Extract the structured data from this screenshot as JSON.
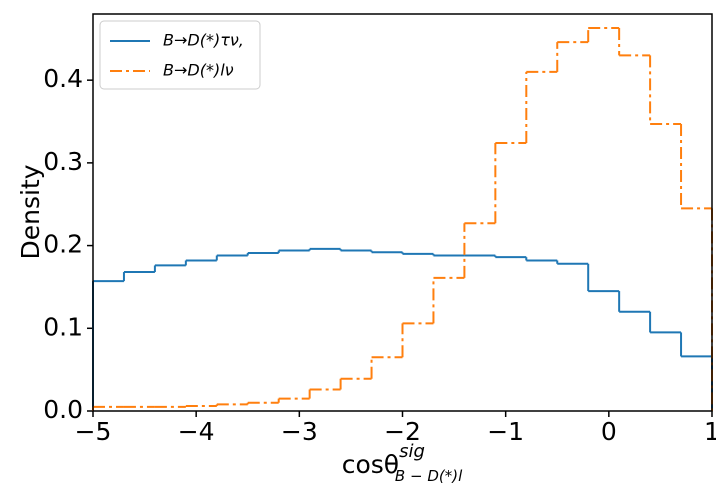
{
  "chart_data": {
    "type": "histogram",
    "xlabel": "cosθ",
    "xlabel_sup": "sig",
    "xlabel_sub": "B − D(*)l",
    "ylabel": "Density",
    "bins": [
      -5,
      -4.7,
      -4.4,
      -4.1,
      -3.8,
      -3.5,
      -3.2,
      -2.9,
      -2.6,
      -2.3,
      -2.0,
      -1.7,
      -1.4,
      -1.1,
      -0.8,
      -0.5,
      -0.2,
      0.1,
      0.4,
      0.7,
      1.0
    ],
    "series": [
      {
        "name": "B→D(*)τν,",
        "color": "#1f77b4",
        "style": "solid",
        "values": [
          0.157,
          0.168,
          0.176,
          0.182,
          0.188,
          0.191,
          0.194,
          0.196,
          0.194,
          0.192,
          0.19,
          0.188,
          0.188,
          0.186,
          0.182,
          0.178,
          0.145,
          0.12,
          0.095,
          0.066
        ]
      },
      {
        "name": "B→D(*)lν",
        "color": "#ff7f0e",
        "style": "dashdot",
        "values": [
          0.005,
          0.005,
          0.005,
          0.006,
          0.008,
          0.01,
          0.015,
          0.026,
          0.039,
          0.065,
          0.106,
          0.161,
          0.227,
          0.324,
          0.41,
          0.446,
          0.463,
          0.43,
          0.347,
          0.245
        ]
      }
    ],
    "xlim": [
      -5,
      1
    ],
    "xticks": [
      {
        "value": -5,
        "label": "−5"
      },
      {
        "value": -4,
        "label": "−4"
      },
      {
        "value": -3,
        "label": "−3"
      },
      {
        "value": -2,
        "label": "−2"
      },
      {
        "value": -1,
        "label": "−1"
      },
      0,
      1
    ],
    "ylim": [
      0,
      0.48
    ],
    "yticks": [
      {
        "value": 0,
        "label": "0.0"
      },
      0.1,
      0.2,
      0.3,
      0.4
    ],
    "legend": "upper-left"
  }
}
